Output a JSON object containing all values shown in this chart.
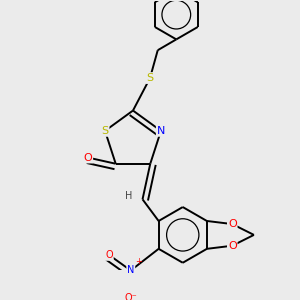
{
  "background_color": "#ebebeb",
  "atom_colors": {
    "S": "#b8b800",
    "N": "#0000ff",
    "O": "#ff0000",
    "C": "#000000",
    "H": "#444444"
  },
  "bond_color": "#000000",
  "lw": 1.4,
  "dbo": 0.018
}
